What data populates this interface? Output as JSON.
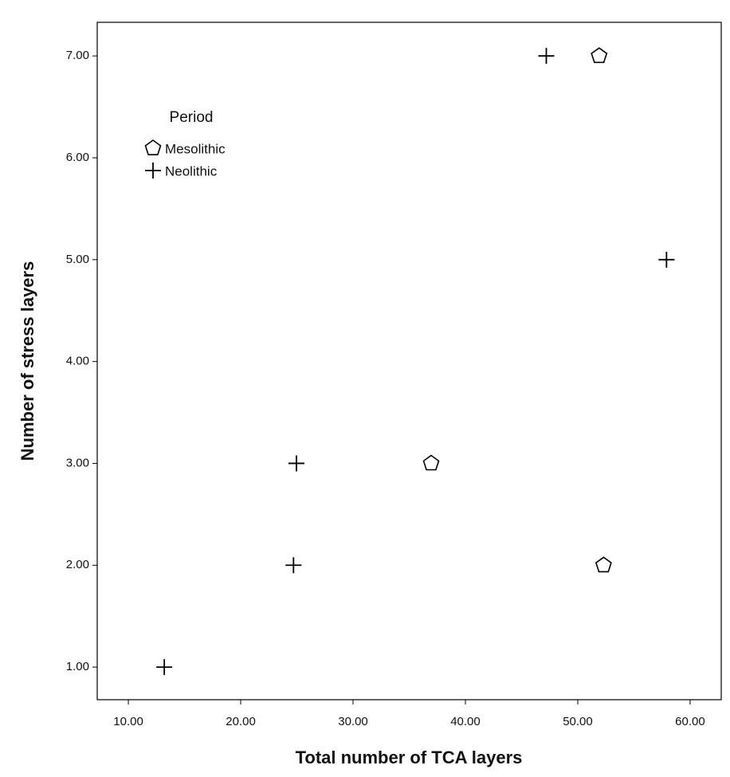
{
  "chart_data": {
    "type": "scatter",
    "x_label": "Total number of TCA layers",
    "y_label": "Number of stress layers",
    "legend_title": "Period",
    "legend": "upper left",
    "series": [
      {
        "name": "Mesolithic",
        "marker": "pentagon",
        "color": "#000000",
        "x": [
          51.9,
          36.95,
          52.3
        ],
        "values": [
          7,
          3,
          2
        ]
      },
      {
        "name": "Neolithic",
        "marker": "plus",
        "color": "#000000",
        "x": [
          47.2,
          57.9,
          24.96,
          24.7,
          13.2
        ],
        "values": [
          7,
          5,
          3,
          2,
          1
        ]
      }
    ],
    "xlim": [
      7.23,
      62.77
    ],
    "ylim": [
      0.68,
      7.33
    ],
    "xticks": [
      {
        "value": 10,
        "label": "10.00"
      },
      {
        "value": 20,
        "label": "20.00"
      },
      {
        "value": 30,
        "label": "30.00"
      },
      {
        "value": 40,
        "label": "40.00"
      },
      {
        "value": 50,
        "label": "50.00"
      },
      {
        "value": 60,
        "label": "60.00"
      }
    ],
    "yticks": [
      {
        "value": 1,
        "label": "1.00"
      },
      {
        "value": 2,
        "label": "2.00"
      },
      {
        "value": 3,
        "label": "3.00"
      },
      {
        "value": 4,
        "label": "4.00"
      },
      {
        "value": 5,
        "label": "5.00"
      },
      {
        "value": 6,
        "label": "6.00"
      },
      {
        "value": 7,
        "label": "7.00"
      }
    ],
    "grid": false
  }
}
